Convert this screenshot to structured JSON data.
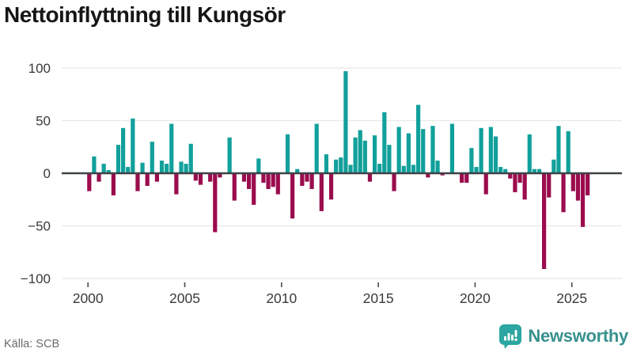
{
  "header": {
    "title": "Nettoinflyttning till Kungsör"
  },
  "footer": {
    "source_label": "Källa: SCB",
    "brand": "Newsworthy",
    "brand_color": "#2CA6A0",
    "brand_text_color": "#37918E"
  },
  "axis": {
    "label_color": "#3A3A3A",
    "grid_color": "#E8E8E8",
    "zero_line_color": "#3E4347"
  },
  "chart_data": {
    "type": "bar",
    "title": "Nettoinflyttning till Kungsör",
    "frequency": "quarterly",
    "start": "2000Q1",
    "end": "2025Q4",
    "xlabel": "",
    "ylabel": "",
    "ylim": [
      -100,
      100
    ],
    "grid": "horizontal",
    "legend": "none",
    "positive_color": "#11A09B",
    "negative_color": "#9B0C4D",
    "yticks": [
      100,
      50,
      0,
      -50,
      -100
    ],
    "xticks": [
      "2000",
      "2005",
      "2010",
      "2015",
      "2020",
      "2025"
    ],
    "categories": [
      "2000Q1",
      "2000Q2",
      "2000Q3",
      "2000Q4",
      "2001Q1",
      "2001Q2",
      "2001Q3",
      "2001Q4",
      "2002Q1",
      "2002Q2",
      "2002Q3",
      "2002Q4",
      "2003Q1",
      "2003Q2",
      "2003Q3",
      "2003Q4",
      "2004Q1",
      "2004Q2",
      "2004Q3",
      "2004Q4",
      "2005Q1",
      "2005Q2",
      "2005Q3",
      "2005Q4",
      "2006Q1",
      "2006Q2",
      "2006Q3",
      "2006Q4",
      "2007Q1",
      "2007Q2",
      "2007Q3",
      "2007Q4",
      "2008Q1",
      "2008Q2",
      "2008Q3",
      "2008Q4",
      "2009Q1",
      "2009Q2",
      "2009Q3",
      "2009Q4",
      "2010Q1",
      "2010Q2",
      "2010Q3",
      "2010Q4",
      "2011Q1",
      "2011Q2",
      "2011Q3",
      "2011Q4",
      "2012Q1",
      "2012Q2",
      "2012Q3",
      "2012Q4",
      "2013Q1",
      "2013Q2",
      "2013Q3",
      "2013Q4",
      "2014Q1",
      "2014Q2",
      "2014Q3",
      "2014Q4",
      "2015Q1",
      "2015Q2",
      "2015Q3",
      "2015Q4",
      "2016Q1",
      "2016Q2",
      "2016Q3",
      "2016Q4",
      "2017Q1",
      "2017Q2",
      "2017Q3",
      "2017Q4",
      "2018Q1",
      "2018Q2",
      "2018Q3",
      "2018Q4",
      "2019Q1",
      "2019Q2",
      "2019Q3",
      "2019Q4",
      "2020Q1",
      "2020Q2",
      "2020Q3",
      "2020Q4",
      "2021Q1",
      "2021Q2",
      "2021Q3",
      "2021Q4",
      "2022Q1",
      "2022Q2",
      "2022Q3",
      "2022Q4",
      "2023Q1",
      "2023Q2",
      "2023Q3",
      "2023Q4",
      "2024Q1",
      "2024Q2",
      "2024Q3",
      "2024Q4",
      "2025Q1",
      "2025Q2",
      "2025Q3",
      "2025Q4"
    ],
    "values": [
      -17,
      16,
      -8,
      9,
      3,
      -21,
      27,
      43,
      6,
      52,
      -17,
      10,
      -12,
      30,
      -8,
      12,
      9,
      47,
      -20,
      11,
      9,
      28,
      -7,
      -11,
      0,
      -8,
      -56,
      -4,
      0,
      34,
      -26,
      0,
      -8,
      -15,
      -30,
      14,
      -9,
      -15,
      -13,
      -20,
      0,
      37,
      -43,
      4,
      -12,
      -8,
      -15,
      47,
      -36,
      18,
      -25,
      13,
      15,
      97,
      8,
      34,
      41,
      31,
      -8,
      36,
      9,
      58,
      27,
      -17,
      44,
      7,
      38,
      8,
      65,
      42,
      -4,
      45,
      12,
      -2,
      0,
      47,
      0,
      -9,
      -9,
      24,
      6,
      43,
      -20,
      44,
      35,
      6,
      4,
      -5,
      -18,
      -9,
      -25,
      37,
      4,
      4,
      -91,
      -23,
      13,
      45,
      -37,
      40,
      -17,
      -26,
      -51,
      -21
    ]
  }
}
